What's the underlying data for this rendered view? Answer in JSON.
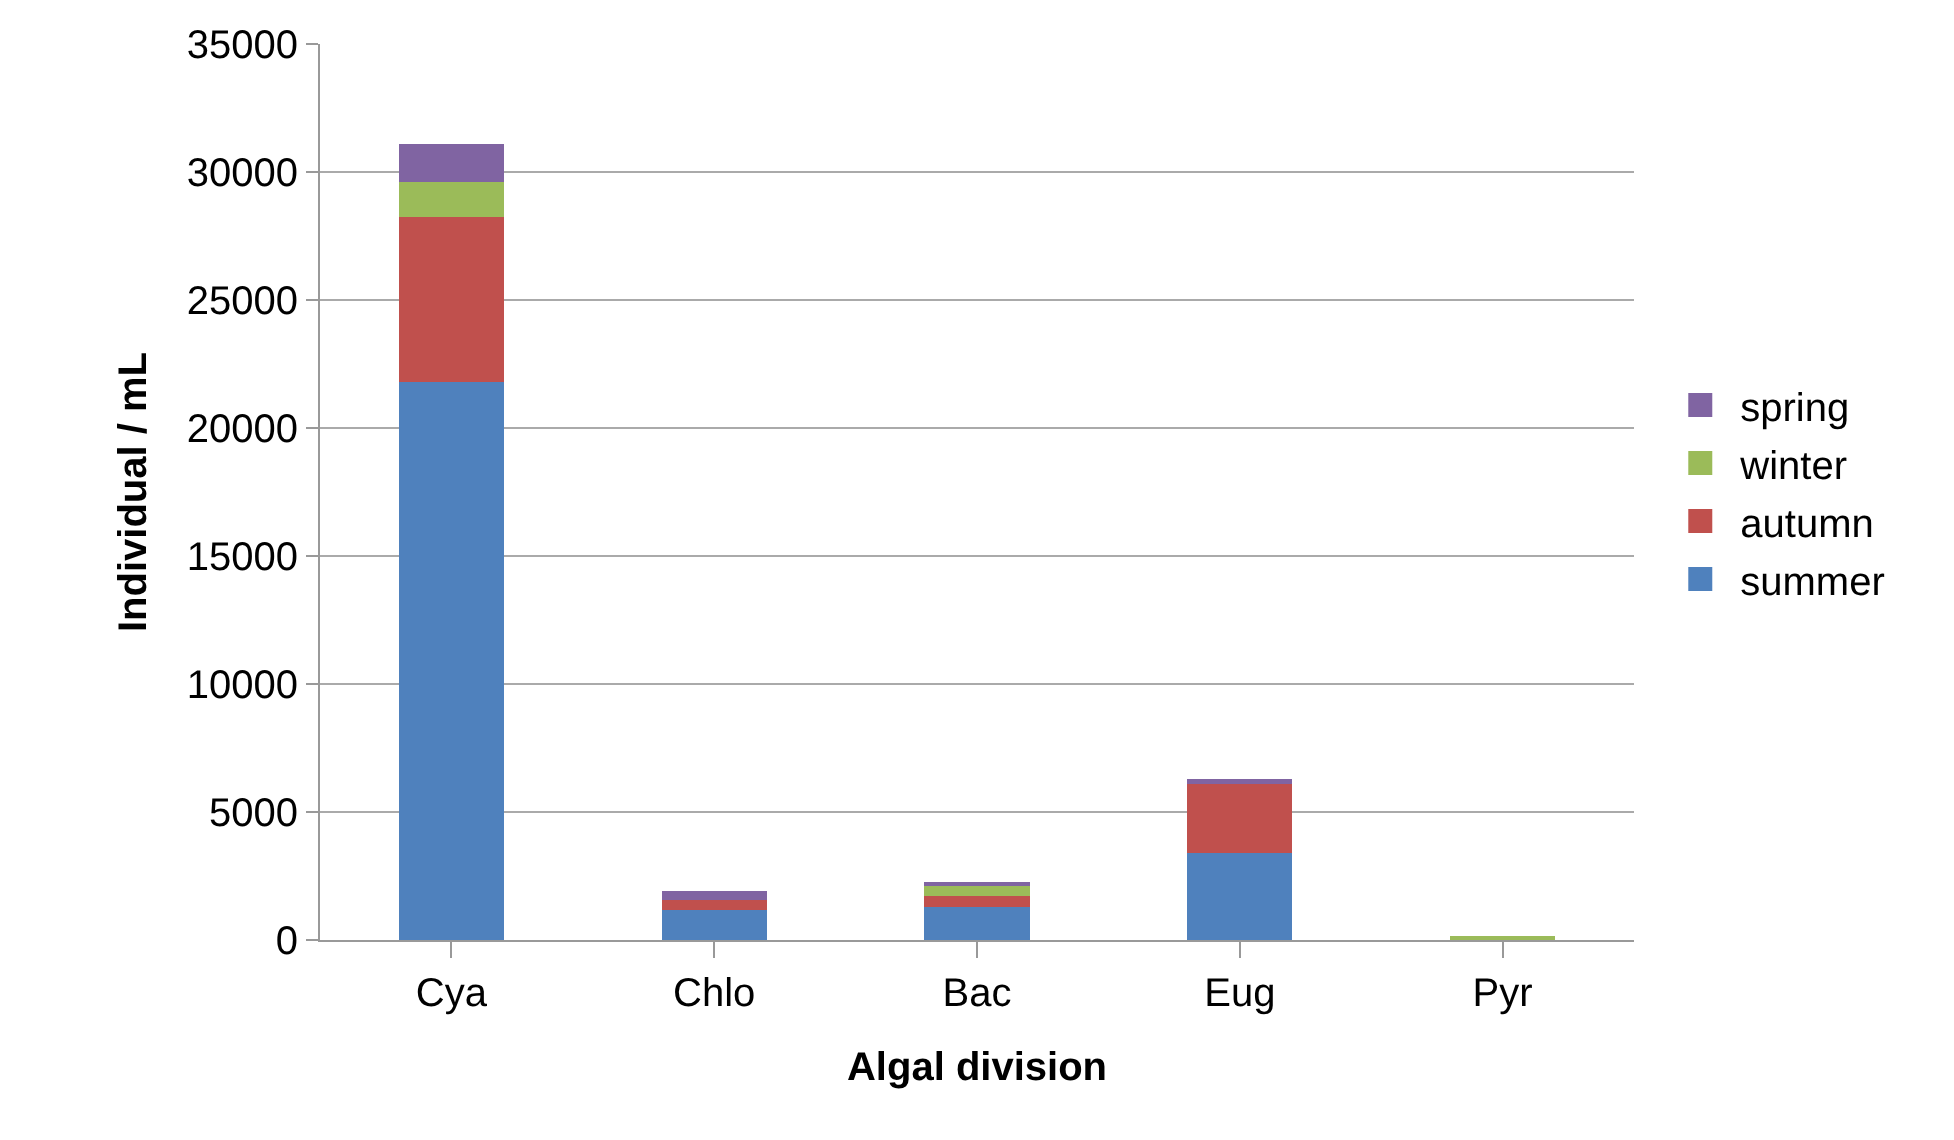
{
  "chart_data": {
    "type": "bar",
    "stacked": true,
    "xlabel": "Algal division",
    "ylabel": "Individual / mL",
    "categories": [
      "Cya",
      "Chlo",
      "Bac",
      "Eug",
      "Pyr"
    ],
    "series": [
      {
        "name": "summer",
        "color": "#4f81bd",
        "values": [
          21800,
          1190,
          1300,
          3400,
          0
        ]
      },
      {
        "name": "autumn",
        "color": "#c0504d",
        "values": [
          6450,
          390,
          410,
          2680,
          0
        ]
      },
      {
        "name": "winter",
        "color": "#9bbb59",
        "values": [
          1370,
          0,
          420,
          0,
          150
        ]
      },
      {
        "name": "spring",
        "color": "#8064a2",
        "values": [
          1480,
          340,
          130,
          210,
          0
        ]
      }
    ],
    "ylim": [
      0,
      35000
    ],
    "yticks": [
      0,
      5000,
      10000,
      15000,
      20000,
      25000,
      30000,
      35000
    ],
    "grid": "y",
    "legend": "right"
  }
}
